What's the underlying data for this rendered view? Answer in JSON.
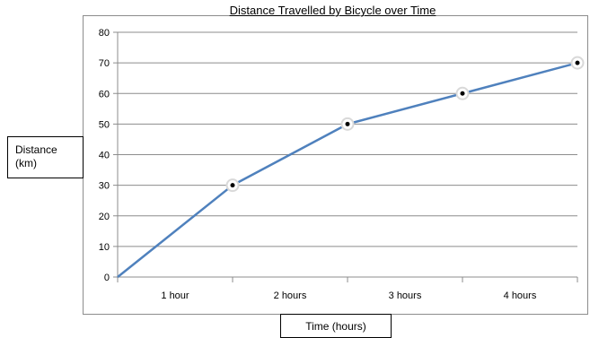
{
  "chart_data": {
    "type": "line",
    "title": "Distance Travelled by Bicycle over Time",
    "xlabel": "Time (hours)",
    "ylabel_lines": [
      "Distance",
      "(km)"
    ],
    "categories": [
      "1 hour",
      "2 hours",
      "3 hours",
      "4 hours"
    ],
    "x": [
      0,
      1,
      2,
      3,
      4
    ],
    "values": [
      0,
      30,
      50,
      60,
      70
    ],
    "markers_on": [
      false,
      true,
      true,
      true,
      true
    ],
    "ylim": [
      0,
      80
    ],
    "yticks": [
      0,
      10,
      20,
      30,
      40,
      50,
      60,
      70,
      80
    ],
    "grid": true,
    "colors": {
      "line": "#4f81bd",
      "grid": "#8c8c8c",
      "marker_outer": "#ffffff",
      "marker_ring": "#d9d9d9",
      "marker_dot": "#000000"
    }
  }
}
